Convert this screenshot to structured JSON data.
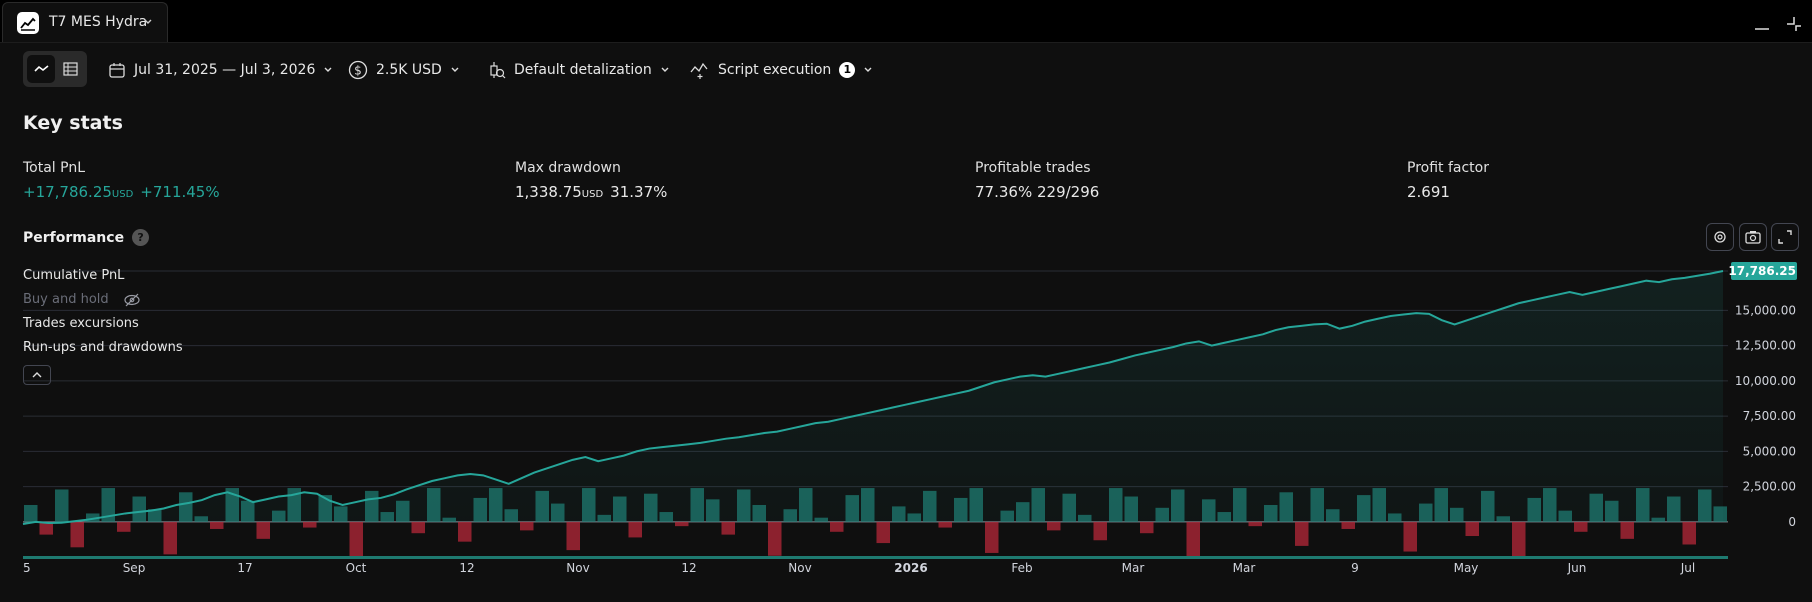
{
  "tab": {
    "title": "T7 MES Hydra",
    "logo_icon": "chart-logo-icon"
  },
  "toolbar": {
    "date_range": "Jul 31, 2025 — Jul 3, 2026",
    "capital": "2.5K USD",
    "detalization": "Default detalization",
    "script_execution": "Script execution",
    "script_badge": "1"
  },
  "key_stats": {
    "title": "Key stats",
    "total_pnl": {
      "label": "Total PnL",
      "value": "+17,786.25",
      "unit": "USD",
      "pct": "+711.45%"
    },
    "max_drawdown": {
      "label": "Max drawdown",
      "value": "1,338.75",
      "unit": "USD",
      "pct": "31.37%"
    },
    "profitable_trades": {
      "label": "Profitable trades",
      "pct": "77.36%",
      "ratio": "229/296"
    },
    "profit_factor": {
      "label": "Profit factor",
      "value": "2.691"
    }
  },
  "performance": {
    "title": "Performance",
    "help": "?",
    "legend": {
      "cumulative": "Cumulative PnL",
      "buy_hold": "Buy and hold",
      "excursions": "Trades excursions",
      "runups": "Run-ups and drawdowns"
    },
    "last_value_label": "17,786.25"
  },
  "colors": {
    "accent": "#26a69a",
    "negative": "#f23645",
    "background": "#0f0f0f"
  },
  "chart_data": {
    "type": "line",
    "y_ticks": [
      "15,000.00",
      "12,500.00",
      "10,000.00",
      "7,500.00",
      "5,000.00",
      "2,500.00",
      "0"
    ],
    "ylim": [
      -2700,
      18000
    ],
    "x_ticks": [
      "5",
      "Sep",
      "17",
      "Oct",
      "12",
      "Nov",
      "12",
      "Nov",
      "2026",
      "Feb",
      "Mar",
      "Mar",
      "9",
      "May",
      "Jun",
      "Jul"
    ],
    "series": [
      {
        "values": [
          -150,
          0,
          -80,
          -60,
          50,
          150,
          300,
          450,
          600,
          700,
          800,
          950,
          1200,
          1350,
          1550,
          1900,
          2100,
          1800,
          1400,
          1600,
          1800,
          1900,
          2100,
          2000,
          1500,
          1200,
          1400,
          1600,
          1700,
          1950,
          2300,
          2600,
          2900,
          3100,
          3300,
          3400,
          3300,
          3000,
          2700,
          3100,
          3500,
          3800,
          4100,
          4400,
          4600,
          4300,
          4500,
          4700,
          5000,
          5200,
          5300,
          5400,
          5500,
          5600,
          5750,
          5900,
          6000,
          6150,
          6300,
          6400,
          6600,
          6800,
          7000,
          7100,
          7300,
          7500,
          7700,
          7900,
          8100,
          8300,
          8500,
          8700,
          8900,
          9100,
          9300,
          9600,
          9900,
          10100,
          10300,
          10400,
          10300,
          10500,
          10700,
          10900,
          11100,
          11300,
          11550,
          11800,
          12000,
          12200,
          12400,
          12650,
          12800,
          12500,
          12700,
          12900,
          13100,
          13300,
          13600,
          13800,
          13900,
          14000,
          14050,
          13700,
          13900,
          14200,
          14400,
          14600,
          14700,
          14800,
          14750,
          14300,
          14000,
          14300,
          14600,
          14900,
          15200,
          15500,
          15700,
          15900,
          16100,
          16300,
          16100,
          16300,
          16500,
          16700,
          16900,
          17100,
          17000,
          17200,
          17300,
          17450,
          17600,
          17786.25
        ]
      }
    ],
    "bars": [
      1200,
      -900,
      2300,
      -1800,
      600,
      2400,
      -700,
      1800,
      900,
      -2300,
      2100,
      400,
      -500,
      2400,
      1500,
      -1200,
      800,
      2400,
      -400,
      1900,
      1100,
      -2600,
      2200,
      700,
      1500,
      -800,
      2400,
      300,
      -1400,
      1700,
      2400,
      900,
      -600,
      2200,
      1300,
      -2000,
      2400,
      500,
      1800,
      -1100,
      2000,
      700,
      -300,
      2400,
      1600,
      -900,
      2300,
      1200,
      -2400,
      900,
      2400,
      300,
      -700,
      1900,
      2400,
      -1500,
      1100,
      600,
      2200,
      -400,
      1700,
      2400,
      -2200,
      800,
      1400,
      2400,
      -600,
      2000,
      500,
      -1300,
      2400,
      1800,
      -800,
      1000,
      2300,
      -2500,
      1600,
      700,
      2400,
      -300,
      1200,
      2100,
      -1700,
      2400,
      900,
      -500,
      1900,
      2400,
      600,
      -2100,
      1300,
      2400,
      1000,
      -1000,
      2200,
      400,
      -2600,
      1700,
      2400,
      800,
      -700,
      2000,
      1500,
      -1200,
      2400,
      300,
      1800,
      -1600,
      2300,
      1100
    ],
    "last_label": "17,786.25"
  }
}
